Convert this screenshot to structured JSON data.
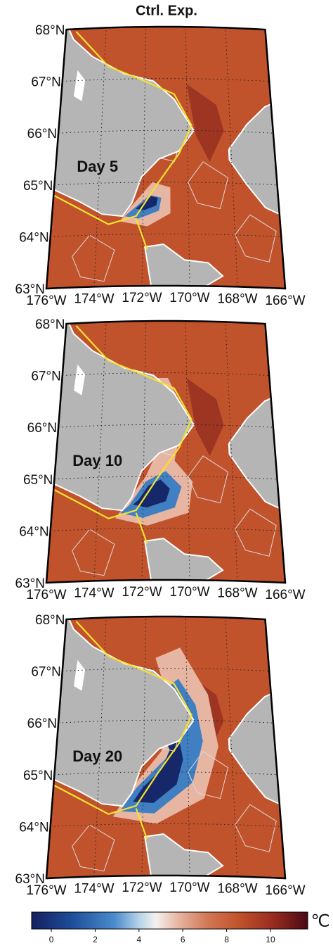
{
  "title": "Ctrl. Exp.",
  "panels": [
    {
      "label": "Day 5"
    },
    {
      "label": "Day 10"
    },
    {
      "label": "Day 20"
    }
  ],
  "lat_labels": [
    "68°N",
    "67°N",
    "66°N",
    "65°N",
    "64°N",
    "63°N"
  ],
  "lon_labels": [
    "176°W",
    "174°W",
    "172°W",
    "170°W",
    "168°W",
    "166°W"
  ],
  "colorbar": {
    "range": [
      -0.9,
      11.7
    ],
    "ticks": [
      0,
      2,
      4,
      6,
      8,
      10
    ],
    "unit": "℃"
  }
}
